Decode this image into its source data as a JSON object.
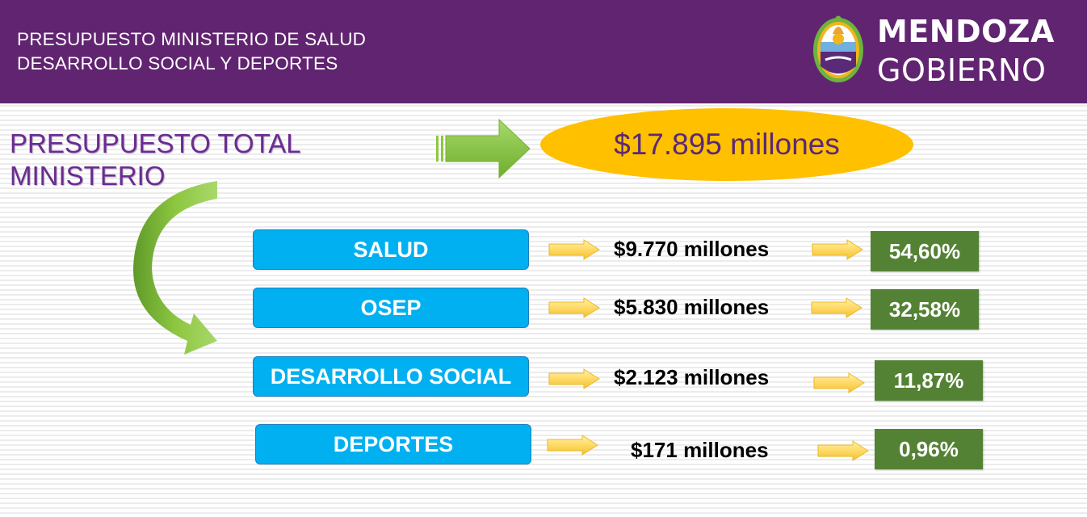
{
  "header": {
    "title_line1": "PRESUPUESTO MINISTERIO DE SALUD",
    "title_line2": "DESARROLLO SOCIAL Y DEPORTES",
    "logo_line1": "MENDOZA",
    "logo_line2": "GOBIERNO",
    "logo_emblem": "provincial-coat-of-arms"
  },
  "total": {
    "label_line1": "PRESUPUESTO TOTAL",
    "label_line2": "MINISTERIO",
    "value": "$17.895 millones"
  },
  "items": [
    {
      "category": "SALUD",
      "amount": "$9.770 millones",
      "percent": "54,60%"
    },
    {
      "category": "OSEP",
      "amount": "$5.830 millones",
      "percent": "32,58%"
    },
    {
      "category": "DESARROLLO SOCIAL",
      "amount": "$2.123 millones",
      "percent": "11,87%"
    },
    {
      "category": "DEPORTES",
      "amount": "$171 millones",
      "percent": "0,96%"
    }
  ],
  "colors": {
    "header": "#612470",
    "total_label": "#6a2c90",
    "ellipse": "#ffc000",
    "category_box": "#00b0f0",
    "percent_box": "#548235",
    "green_arrow": "#8dc63f",
    "yellow_arrow": "#ffd966"
  }
}
